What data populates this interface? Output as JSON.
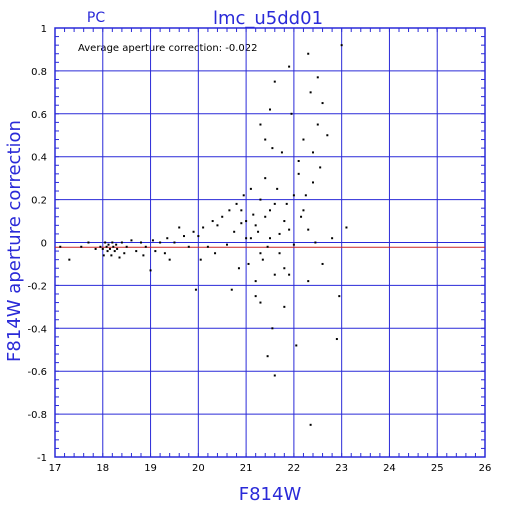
{
  "chart_data": {
    "type": "scatter",
    "title": "lmc_u5dd01",
    "corner_label": "PC",
    "annotation": "Average aperture correction: -0.022",
    "xlabel": "F814W",
    "ylabel": "F814W aperture correction",
    "xlim": [
      17,
      26
    ],
    "ylim": [
      -1,
      1
    ],
    "xticks": [
      "17",
      "18",
      "19",
      "20",
      "21",
      "22",
      "23",
      "24",
      "25",
      "26"
    ],
    "yticks": [
      "1",
      "0.8",
      "0.6",
      "0.4",
      "0.2",
      "0",
      "-0.2",
      "-0.4",
      "-0.6",
      "-0.8",
      "-1"
    ],
    "grid": true,
    "reference_line_zero": 0,
    "average_line": -0.022,
    "colors": {
      "axes": "#2a2ad8",
      "grid": "#2a2ad8",
      "average_line": "#cc2222",
      "points": "#000000"
    },
    "points": [
      [
        17.11,
        -0.02
      ],
      [
        17.3,
        -0.08
      ],
      [
        17.55,
        -0.02
      ],
      [
        17.7,
        0.0
      ],
      [
        17.85,
        -0.03
      ],
      [
        17.95,
        -0.02
      ],
      [
        18.0,
        -0.03
      ],
      [
        18.02,
        -0.06
      ],
      [
        18.05,
        0.0
      ],
      [
        18.08,
        -0.02
      ],
      [
        18.1,
        -0.04
      ],
      [
        18.12,
        -0.01
      ],
      [
        18.15,
        -0.03
      ],
      [
        18.18,
        -0.06
      ],
      [
        18.2,
        0.0
      ],
      [
        18.22,
        -0.02
      ],
      [
        18.25,
        -0.04
      ],
      [
        18.28,
        -0.01
      ],
      [
        18.3,
        -0.03
      ],
      [
        18.35,
        -0.07
      ],
      [
        18.4,
        0.0
      ],
      [
        18.45,
        -0.05
      ],
      [
        18.5,
        -0.02
      ],
      [
        18.6,
        0.01
      ],
      [
        18.7,
        -0.04
      ],
      [
        18.8,
        0.0
      ],
      [
        18.85,
        -0.06
      ],
      [
        18.9,
        -0.02
      ],
      [
        19.0,
        -0.13
      ],
      [
        19.05,
        0.01
      ],
      [
        19.1,
        -0.04
      ],
      [
        19.2,
        0.0
      ],
      [
        19.3,
        -0.05
      ],
      [
        19.35,
        0.02
      ],
      [
        19.4,
        -0.08
      ],
      [
        19.5,
        0.0
      ],
      [
        19.6,
        0.07
      ],
      [
        19.7,
        0.03
      ],
      [
        19.8,
        -0.02
      ],
      [
        19.9,
        0.05
      ],
      [
        19.95,
        -0.22
      ],
      [
        20.0,
        0.03
      ],
      [
        20.05,
        -0.08
      ],
      [
        20.1,
        0.07
      ],
      [
        20.2,
        -0.02
      ],
      [
        20.3,
        0.1
      ],
      [
        20.35,
        -0.05
      ],
      [
        20.4,
        0.08
      ],
      [
        20.5,
        0.12
      ],
      [
        20.6,
        -0.01
      ],
      [
        20.65,
        0.15
      ],
      [
        20.7,
        -0.22
      ],
      [
        20.75,
        0.05
      ],
      [
        20.8,
        0.18
      ],
      [
        20.85,
        -0.12
      ],
      [
        20.9,
        0.09
      ],
      [
        20.95,
        0.22
      ],
      [
        21.0,
        0.02
      ],
      [
        21.05,
        -0.1
      ],
      [
        21.1,
        0.25
      ],
      [
        21.15,
        0.13
      ],
      [
        21.2,
        -0.18
      ],
      [
        21.25,
        0.05
      ],
      [
        21.3,
        0.2
      ],
      [
        21.35,
        -0.08
      ],
      [
        21.4,
        0.3
      ],
      [
        21.45,
        -0.02
      ],
      [
        21.5,
        0.15
      ],
      [
        21.55,
        0.44
      ],
      [
        21.6,
        -0.15
      ],
      [
        21.65,
        0.25
      ],
      [
        21.7,
        0.04
      ],
      [
        21.75,
        0.42
      ],
      [
        21.8,
        -0.12
      ],
      [
        21.85,
        0.18
      ],
      [
        21.9,
        0.06
      ],
      [
        21.95,
        0.6
      ],
      [
        22.0,
        -0.01
      ],
      [
        22.05,
        -0.48
      ],
      [
        22.1,
        0.32
      ],
      [
        22.15,
        0.12
      ],
      [
        22.2,
        0.48
      ],
      [
        22.25,
        0.22
      ],
      [
        22.3,
        0.06
      ],
      [
        22.35,
        0.7
      ],
      [
        22.4,
        0.28
      ],
      [
        22.45,
        0.0
      ],
      [
        22.5,
        0.55
      ],
      [
        22.55,
        0.35
      ],
      [
        22.6,
        -0.1
      ],
      [
        22.7,
        0.5
      ],
      [
        22.8,
        0.02
      ],
      [
        22.9,
        -0.45
      ],
      [
        23.0,
        0.92
      ],
      [
        23.1,
        0.07
      ],
      [
        21.3,
        0.55
      ],
      [
        21.4,
        0.48
      ],
      [
        21.5,
        0.62
      ],
      [
        21.6,
        0.75
      ],
      [
        21.9,
        0.82
      ],
      [
        22.3,
        0.88
      ],
      [
        22.5,
        0.77
      ],
      [
        22.6,
        0.65
      ],
      [
        21.55,
        -0.4
      ],
      [
        21.6,
        -0.62
      ],
      [
        21.2,
        -0.25
      ],
      [
        21.3,
        -0.28
      ],
      [
        21.45,
        -0.53
      ],
      [
        22.35,
        -0.85
      ],
      [
        21.8,
        -0.3
      ],
      [
        22.95,
        -0.25
      ],
      [
        20.9,
        0.15
      ],
      [
        21.0,
        0.1
      ],
      [
        21.1,
        0.02
      ],
      [
        21.2,
        0.08
      ],
      [
        21.3,
        -0.05
      ],
      [
        21.4,
        0.12
      ],
      [
        21.5,
        0.02
      ],
      [
        21.6,
        0.18
      ],
      [
        21.7,
        -0.05
      ],
      [
        21.8,
        0.1
      ],
      [
        21.9,
        -0.15
      ],
      [
        22.0,
        0.22
      ],
      [
        22.1,
        0.38
      ],
      [
        22.2,
        0.15
      ],
      [
        22.3,
        -0.18
      ],
      [
        22.4,
        0.42
      ]
    ]
  }
}
